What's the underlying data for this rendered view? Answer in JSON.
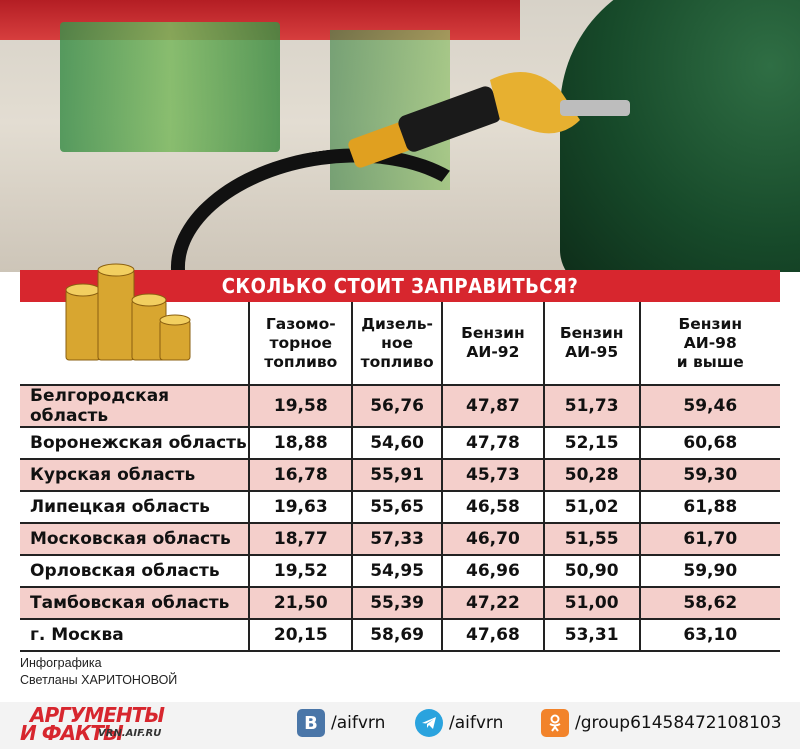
{
  "title": "СКОЛЬКО СТОИТ ЗАПРАВИТЬСЯ?",
  "columns": [
    "Газомо-торное топливо",
    "Дизель-ное топливо",
    "Бензин АИ-92",
    "Бензин АИ-95",
    "Бензин АИ-98 и выше"
  ],
  "column_lines": [
    [
      "Газомо-",
      "торное",
      "топливо"
    ],
    [
      "Дизель-",
      "ное",
      "топливо"
    ],
    [
      "Бензин",
      "АИ-92"
    ],
    [
      "Бензин",
      "АИ-95"
    ],
    [
      "Бензин",
      "АИ-98",
      "и выше"
    ]
  ],
  "rows": [
    {
      "region": "Белгородская область",
      "values": [
        "19,58",
        "56,76",
        "47,87",
        "51,73",
        "59,46"
      ]
    },
    {
      "region": "Воронежская область",
      "values": [
        "18,88",
        "54,60",
        "47,78",
        "52,15",
        "60,68"
      ]
    },
    {
      "region": "Курская область",
      "values": [
        "16,78",
        "55,91",
        "45,73",
        "50,28",
        "59,30"
      ]
    },
    {
      "region": "Липецкая область",
      "values": [
        "19,63",
        "55,65",
        "46,58",
        "51,02",
        "61,88"
      ]
    },
    {
      "region": "Московская область",
      "values": [
        "18,77",
        "57,33",
        "46,70",
        "51,55",
        "61,70"
      ]
    },
    {
      "region": "Орловская область",
      "values": [
        "19,52",
        "54,95",
        "46,96",
        "50,90",
        "59,90"
      ]
    },
    {
      "region": "Тамбовская область",
      "values": [
        "21,50",
        "55,39",
        "47,22",
        "51,00",
        "58,62"
      ]
    },
    {
      "region": "г. Москва",
      "values": [
        "20,15",
        "58,69",
        "47,68",
        "53,31",
        "63,10"
      ]
    }
  ],
  "credit": {
    "line1": "Инфографика",
    "line2": "Светланы ХАРИТОНОВОЙ"
  },
  "footer": {
    "logo_line1": "АРГУМЕНТЫ",
    "logo_line2": "И ФАКТЫ",
    "site": "VRN.AIF.RU",
    "vk": "/aifvrn",
    "telegram": "/aifvrn",
    "ok": "/group61458472108103"
  },
  "colors": {
    "accent": "#d7262e",
    "row_pink": "#f4cfcb"
  },
  "icons": [
    "coins-icon",
    "vk-icon",
    "telegram-icon",
    "odnoklassniki-icon"
  ]
}
